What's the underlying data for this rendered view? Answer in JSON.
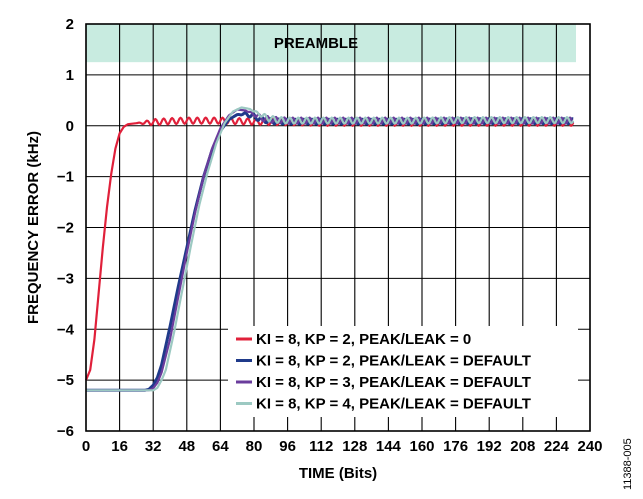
{
  "chart_data": {
    "type": "line",
    "xlabel": "TIME (Bits)",
    "ylabel": "FREQUENCY ERROR (kHz)",
    "xlim": [
      0,
      240
    ],
    "ylim": [
      -6,
      2
    ],
    "xticks": [
      0,
      16,
      32,
      48,
      64,
      80,
      96,
      112,
      128,
      144,
      160,
      176,
      192,
      208,
      224,
      240
    ],
    "yticks": [
      2,
      1,
      0,
      -1,
      -2,
      -3,
      -4,
      -5,
      -6
    ],
    "grid": true,
    "legend_position": "bottom-right",
    "annotation": {
      "text": "PREAMBLE",
      "x_range": [
        0,
        240
      ],
      "y_range": [
        1.25,
        2
      ],
      "color": "#c8ebe0"
    },
    "series": [
      {
        "name": "KI = 8, KP = 2, PEAK/LEAK = 0",
        "color": "#e0203a",
        "x": [
          0,
          2,
          4,
          6,
          8,
          10,
          12,
          14,
          16,
          18,
          20,
          24,
          28,
          32,
          40,
          48,
          56,
          64,
          72,
          80,
          96,
          112,
          128,
          144,
          160,
          176,
          192,
          208,
          224,
          232
        ],
        "y": [
          -5.0,
          -4.8,
          -4.2,
          -3.3,
          -2.4,
          -1.6,
          -0.95,
          -0.45,
          -0.15,
          -0.02,
          0.03,
          0.05,
          0.06,
          0.07,
          0.09,
          0.1,
          0.1,
          0.1,
          0.09,
          0.08,
          0.07,
          0.06,
          0.06,
          0.06,
          0.06,
          0.06,
          0.06,
          0.06,
          0.06,
          0.06
        ],
        "ripple": 0.06,
        "ripple_start": 24
      },
      {
        "name": "KI = 8, KP = 2, PEAK/LEAK = DEFAULT",
        "color": "#1f3a8a",
        "x": [
          0,
          16,
          28,
          30,
          32,
          34,
          36,
          40,
          44,
          48,
          52,
          56,
          60,
          64,
          68,
          72,
          76,
          80,
          84,
          88,
          96,
          112,
          128,
          144,
          160,
          176,
          192,
          208,
          224,
          232
        ],
        "y": [
          -5.2,
          -5.2,
          -5.2,
          -5.18,
          -5.1,
          -4.95,
          -4.7,
          -3.95,
          -3.15,
          -2.4,
          -1.65,
          -1.0,
          -0.48,
          -0.1,
          0.12,
          0.22,
          0.23,
          0.18,
          0.12,
          0.09,
          0.08,
          0.08,
          0.08,
          0.08,
          0.08,
          0.09,
          0.09,
          0.09,
          0.09,
          0.09
        ],
        "ripple": 0.05,
        "ripple_start": 72
      },
      {
        "name": "KI = 8, KP = 3, PEAK/LEAK = DEFAULT",
        "color": "#6a3c9c",
        "x": [
          0,
          16,
          30,
          32,
          34,
          36,
          40,
          44,
          48,
          52,
          56,
          60,
          64,
          68,
          72,
          76,
          80,
          84,
          88,
          96,
          112,
          128,
          144,
          160,
          176,
          192,
          208,
          224,
          232
        ],
        "y": [
          -5.2,
          -5.2,
          -5.2,
          -5.16,
          -5.05,
          -4.85,
          -4.2,
          -3.35,
          -2.5,
          -1.7,
          -1.0,
          -0.45,
          -0.05,
          0.2,
          0.32,
          0.3,
          0.22,
          0.15,
          0.12,
          0.1,
          0.1,
          0.1,
          0.1,
          0.1,
          0.1,
          0.1,
          0.1,
          0.1,
          0.1
        ],
        "ripple": 0.06,
        "ripple_start": 76
      },
      {
        "name": "KI = 8, KP = 4, PEAK/LEAK = DEFAULT",
        "color": "#9cc9c2",
        "x": [
          0,
          16,
          32,
          34,
          36,
          38,
          42,
          46,
          50,
          54,
          58,
          62,
          66,
          70,
          74,
          78,
          82,
          86,
          90,
          96,
          112,
          128,
          144,
          160,
          176,
          192,
          208,
          224,
          232
        ],
        "y": [
          -5.2,
          -5.2,
          -5.2,
          -5.15,
          -5.0,
          -4.8,
          -4.05,
          -3.2,
          -2.35,
          -1.55,
          -0.9,
          -0.35,
          0.05,
          0.28,
          0.36,
          0.33,
          0.24,
          0.16,
          0.12,
          0.1,
          0.1,
          0.1,
          0.1,
          0.1,
          0.11,
          0.11,
          0.11,
          0.11,
          0.11
        ],
        "ripple": 0.06,
        "ripple_start": 78
      }
    ]
  },
  "figure_id": "11388-005"
}
